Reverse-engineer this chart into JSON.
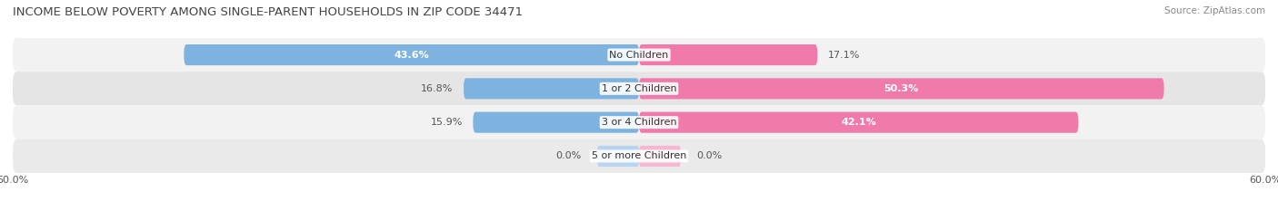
{
  "title": "INCOME BELOW POVERTY AMONG SINGLE-PARENT HOUSEHOLDS IN ZIP CODE 34471",
  "source": "Source: ZipAtlas.com",
  "categories": [
    "No Children",
    "1 or 2 Children",
    "3 or 4 Children",
    "5 or more Children"
  ],
  "single_father": [
    43.6,
    16.8,
    15.9,
    0.0
  ],
  "single_mother": [
    17.1,
    50.3,
    42.1,
    0.0
  ],
  "father_color": "#7eb3e0",
  "mother_color": "#f07aaa",
  "father_color_light": "#b8d4ef",
  "mother_color_light": "#f5b8d0",
  "row_bg_colors": [
    "#f0f0f0",
    "#e0e0e0",
    "#f0f0f0",
    "#e8e8e8"
  ],
  "xlim": [
    -60,
    60
  ],
  "title_fontsize": 9.5,
  "source_fontsize": 7.5,
  "label_fontsize": 8,
  "value_fontsize": 8,
  "legend_fontsize": 8,
  "figsize": [
    14.06,
    2.33
  ],
  "dpi": 100
}
